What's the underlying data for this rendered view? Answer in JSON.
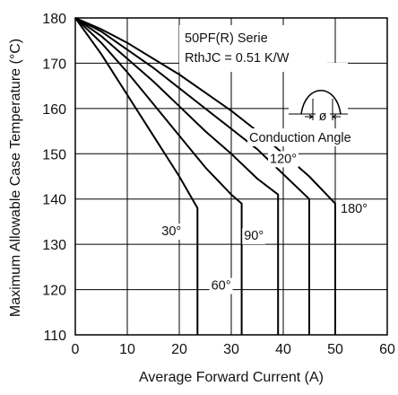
{
  "chart_data": {
    "type": "line",
    "title": "",
    "xlabel": "Average Forward Current (A)",
    "ylabel": "Maximum Allowable Case Temperature (°C)",
    "xlim": [
      0,
      60
    ],
    "ylim": [
      110,
      180
    ],
    "xticks": [
      0,
      10,
      20,
      30,
      40,
      50,
      60
    ],
    "yticks": [
      110,
      120,
      130,
      140,
      150,
      160,
      170,
      180
    ],
    "grid": true,
    "annotations": {
      "device": "50PF(R) Serie",
      "rth": "RthJC = 0.51 K/W",
      "waveform_label": "Conduction Angle",
      "waveform_symbol": "ø"
    },
    "series": [
      {
        "name": "30°",
        "points": [
          [
            0,
            180
          ],
          [
            5,
            172
          ],
          [
            10,
            163
          ],
          [
            15,
            154
          ],
          [
            20,
            145
          ],
          [
            23.5,
            138
          ]
        ],
        "drop_to": 110
      },
      {
        "name": "60°",
        "points": [
          [
            0,
            180
          ],
          [
            5,
            174.5
          ],
          [
            10,
            168
          ],
          [
            15,
            161
          ],
          [
            20,
            154
          ],
          [
            25,
            147
          ],
          [
            30,
            141
          ],
          [
            32,
            139
          ]
        ],
        "drop_to": 110
      },
      {
        "name": "90°",
        "points": [
          [
            0,
            180
          ],
          [
            5,
            176
          ],
          [
            10,
            171
          ],
          [
            15,
            166
          ],
          [
            20,
            160.5
          ],
          [
            25,
            155
          ],
          [
            30,
            150
          ],
          [
            35,
            144.5
          ],
          [
            39,
            141
          ]
        ],
        "drop_to": 110
      },
      {
        "name": "120°",
        "points": [
          [
            0,
            180
          ],
          [
            5,
            177
          ],
          [
            10,
            173
          ],
          [
            15,
            169
          ],
          [
            20,
            164.5
          ],
          [
            25,
            160
          ],
          [
            30,
            155.5
          ],
          [
            35,
            151
          ],
          [
            40,
            145.5
          ],
          [
            45,
            140
          ]
        ],
        "drop_to": 110
      },
      {
        "name": "180°",
        "points": [
          [
            0,
            180
          ],
          [
            5,
            177.5
          ],
          [
            10,
            174.5
          ],
          [
            15,
            171
          ],
          [
            20,
            167.5
          ],
          [
            25,
            163.5
          ],
          [
            30,
            159.5
          ],
          [
            35,
            155
          ],
          [
            40,
            150
          ],
          [
            45,
            145
          ],
          [
            50,
            139
          ]
        ],
        "drop_to": 110
      }
    ]
  }
}
